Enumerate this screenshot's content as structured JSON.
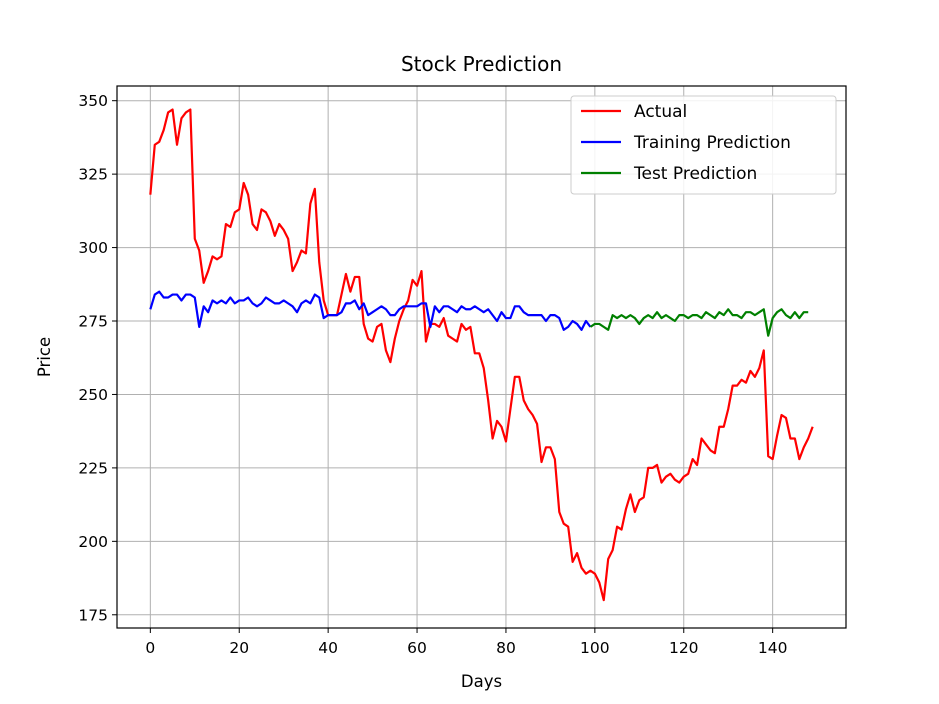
{
  "chart_data": {
    "type": "line",
    "title": "Stock Prediction",
    "xlabel": "Days",
    "ylabel": "Price",
    "xlim": [
      -7.5,
      156.5
    ],
    "ylim": [
      170.5,
      355
    ],
    "xticks": [
      0,
      20,
      40,
      60,
      80,
      100,
      120,
      140
    ],
    "yticks": [
      175,
      200,
      225,
      250,
      275,
      300,
      325,
      350
    ],
    "grid": true,
    "legend_position": "upper right",
    "series": [
      {
        "name": "Actual",
        "color": "#ff0000",
        "x_start": 0,
        "values": [
          318,
          335,
          336,
          340,
          346,
          347,
          335,
          344,
          346,
          347,
          303,
          299,
          288,
          292,
          297,
          296,
          297,
          308,
          307,
          312,
          313,
          322,
          318,
          308,
          306,
          313,
          312,
          309,
          304,
          308,
          306,
          303,
          292,
          295,
          299,
          298,
          315,
          320,
          295,
          282,
          277,
          277,
          277,
          284,
          291,
          285,
          290,
          290,
          274,
          269,
          268,
          273,
          274,
          265,
          261,
          269,
          275,
          279,
          282,
          289,
          287,
          292,
          268,
          274,
          274,
          273,
          276,
          270,
          269,
          268,
          274,
          272,
          273,
          264,
          264,
          259,
          248,
          235,
          241,
          239,
          234,
          245,
          256,
          256,
          248,
          245,
          243,
          240,
          227,
          232,
          232,
          228,
          210,
          206,
          205,
          193,
          196,
          191,
          189,
          190,
          189,
          186,
          180,
          194,
          197,
          205,
          204,
          211,
          216,
          210,
          214,
          215,
          225,
          225,
          226,
          220,
          222,
          223,
          221,
          220,
          222,
          223,
          228,
          226,
          235,
          233,
          231,
          230,
          239,
          239,
          245,
          253,
          253,
          255,
          254,
          258,
          256,
          259,
          265,
          229,
          228,
          236,
          243,
          242,
          235,
          235,
          228,
          232,
          235,
          239
        ]
      },
      {
        "name": "Training Prediction",
        "color": "#0000ff",
        "x_start": 0,
        "values": [
          279,
          284,
          285,
          283,
          283,
          284,
          284,
          282,
          284,
          284,
          283,
          273,
          280,
          278,
          282,
          281,
          282,
          281,
          283,
          281,
          282,
          282,
          283,
          281,
          280,
          281,
          283,
          282,
          281,
          281,
          282,
          281,
          280,
          278,
          281,
          282,
          281,
          284,
          283,
          276,
          277,
          277,
          277,
          278,
          281,
          281,
          282,
          279,
          281,
          277,
          278,
          279,
          280,
          279,
          277,
          277,
          279,
          280,
          280,
          280,
          280,
          281,
          281,
          273,
          280,
          278,
          280,
          280,
          279,
          278,
          280,
          279,
          279,
          280,
          279,
          278,
          279,
          277,
          275,
          278,
          276,
          276,
          280,
          280,
          278,
          277,
          277,
          277,
          277,
          275,
          277,
          277,
          276,
          272,
          273,
          275,
          274,
          272,
          275,
          273
        ]
      },
      {
        "name": "Test Prediction",
        "color": "#008000",
        "x_start": 99,
        "values": [
          273,
          274,
          274,
          273,
          272,
          277,
          276,
          277,
          276,
          277,
          276,
          274,
          276,
          277,
          276,
          278,
          276,
          277,
          276,
          275,
          277,
          277,
          276,
          277,
          277,
          276,
          278,
          277,
          276,
          278,
          277,
          279,
          277,
          277,
          276,
          278,
          278,
          277,
          278,
          279,
          270,
          276,
          278,
          279,
          277,
          276,
          278,
          276,
          278,
          278
        ]
      }
    ]
  }
}
